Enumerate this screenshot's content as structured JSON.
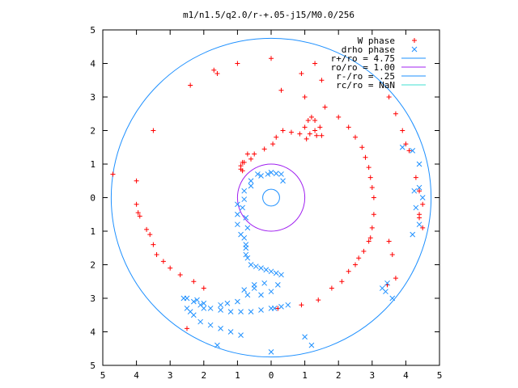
{
  "chart_data": {
    "type": "scatter",
    "title": "m1/n1.5/q2.0/r-+.05-j15/M0.0/256",
    "xlim": [
      -5,
      5
    ],
    "ylim": [
      -5,
      5
    ],
    "x_ticks": [
      -5,
      -4,
      -3,
      -2,
      -1,
      0,
      1,
      2,
      3,
      4,
      5
    ],
    "x_tick_labels": [
      "5",
      "4",
      "3",
      "2",
      "1",
      "0",
      "1",
      "2",
      "3",
      "4",
      "5"
    ],
    "y_ticks": [
      5,
      4,
      3,
      2,
      1,
      0,
      -1,
      -2,
      -3,
      -4,
      -5
    ],
    "y_tick_labels": [
      "5",
      "4",
      "3",
      "2",
      "1",
      "0",
      "1",
      "2",
      "3",
      "4",
      "5"
    ],
    "grid": false,
    "legend_position": "top-right",
    "series": [
      {
        "name": "W phase",
        "marker": "plus",
        "color": "#ff0000",
        "points": [
          [
            0.0,
            4.15
          ],
          [
            -1.0,
            4.0
          ],
          [
            -1.7,
            3.8
          ],
          [
            -1.6,
            3.7
          ],
          [
            -2.4,
            3.35
          ],
          [
            -3.5,
            2.0
          ],
          [
            -4.7,
            0.7
          ],
          [
            -4.0,
            0.5
          ],
          [
            -4.0,
            -0.2
          ],
          [
            -3.95,
            -0.45
          ],
          [
            -3.9,
            -0.55
          ],
          [
            -3.7,
            -0.95
          ],
          [
            -3.6,
            -1.1
          ],
          [
            -3.5,
            -1.4
          ],
          [
            -3.4,
            -1.7
          ],
          [
            -3.2,
            -1.9
          ],
          [
            -3.0,
            -2.1
          ],
          [
            -2.7,
            -2.3
          ],
          [
            -2.3,
            -2.5
          ],
          [
            -2.0,
            -2.7
          ],
          [
            -2.5,
            -3.9
          ],
          [
            0.2,
            -3.3
          ],
          [
            0.9,
            -3.2
          ],
          [
            1.4,
            -3.05
          ],
          [
            1.8,
            -2.7
          ],
          [
            2.1,
            -2.5
          ],
          [
            2.3,
            -2.2
          ],
          [
            2.5,
            -2.0
          ],
          [
            2.6,
            -1.8
          ],
          [
            2.75,
            -1.6
          ],
          [
            2.9,
            -1.3
          ],
          [
            2.95,
            -1.2
          ],
          [
            3.0,
            -0.9
          ],
          [
            3.05,
            -0.5
          ],
          [
            3.05,
            0.0
          ],
          [
            3.0,
            0.3
          ],
          [
            2.95,
            0.6
          ],
          [
            2.9,
            0.9
          ],
          [
            2.8,
            1.2
          ],
          [
            2.7,
            1.5
          ],
          [
            2.5,
            1.8
          ],
          [
            2.3,
            2.1
          ],
          [
            2.0,
            2.4
          ],
          [
            1.6,
            2.7
          ],
          [
            1.0,
            3.0
          ],
          [
            0.3,
            3.2
          ],
          [
            3.5,
            -1.3
          ],
          [
            3.6,
            -1.7
          ],
          [
            3.7,
            -2.4
          ],
          [
            3.45,
            -2.6
          ],
          [
            3.5,
            3.0
          ],
          [
            3.7,
            2.5
          ],
          [
            3.9,
            2.0
          ],
          [
            4.0,
            1.6
          ],
          [
            4.1,
            1.4
          ],
          [
            4.3,
            0.6
          ],
          [
            4.4,
            0.2
          ],
          [
            4.5,
            -0.2
          ],
          [
            4.4,
            -0.5
          ],
          [
            4.4,
            -0.6
          ],
          [
            4.5,
            -0.9
          ],
          [
            1.3,
            4.0
          ],
          [
            0.9,
            3.7
          ],
          [
            1.5,
            3.5
          ],
          [
            -0.85,
            0.8
          ],
          [
            -0.9,
            0.95
          ],
          [
            -0.8,
            1.05
          ],
          [
            -0.6,
            1.15
          ],
          [
            -0.5,
            1.3
          ],
          [
            -0.2,
            1.45
          ],
          [
            0.05,
            1.6
          ],
          [
            0.15,
            1.8
          ],
          [
            0.35,
            2.0
          ],
          [
            0.6,
            1.95
          ],
          [
            0.85,
            1.9
          ],
          [
            1.05,
            1.75
          ],
          [
            1.15,
            1.9
          ],
          [
            1.0,
            2.1
          ],
          [
            1.1,
            2.3
          ],
          [
            1.2,
            2.4
          ],
          [
            1.3,
            2.3
          ],
          [
            1.45,
            2.1
          ],
          [
            1.5,
            1.85
          ],
          [
            1.35,
            1.85
          ],
          [
            1.3,
            2.0
          ],
          [
            -0.7,
            1.3
          ],
          [
            -0.85,
            1.05
          ],
          [
            -0.9,
            0.85
          ]
        ]
      },
      {
        "name": "drho phase",
        "marker": "cross",
        "color": "#1e90ff",
        "points": [
          [
            -0.1,
            0.7
          ],
          [
            -0.4,
            0.7
          ],
          [
            -0.6,
            0.5
          ],
          [
            -0.8,
            0.2
          ],
          [
            -1.0,
            -0.2
          ],
          [
            -1.0,
            -0.5
          ],
          [
            -1.0,
            -0.8
          ],
          [
            -0.9,
            -1.1
          ],
          [
            -0.75,
            -1.4
          ],
          [
            -0.75,
            -1.7
          ],
          [
            -0.6,
            -2.0
          ],
          [
            -0.3,
            -2.1
          ],
          [
            0.0,
            -2.2
          ],
          [
            0.3,
            -2.3
          ],
          [
            0.2,
            -2.6
          ],
          [
            0.0,
            -2.8
          ],
          [
            -0.3,
            -2.9
          ],
          [
            -0.5,
            -2.7
          ],
          [
            -0.7,
            -2.9
          ],
          [
            -1.0,
            -3.1
          ],
          [
            -1.5,
            -3.2
          ],
          [
            -2.0,
            -3.3
          ],
          [
            -2.5,
            -3.0
          ],
          [
            -2.3,
            -3.1
          ],
          [
            -2.1,
            -3.2
          ],
          [
            -1.8,
            -3.3
          ],
          [
            -1.5,
            -3.35
          ],
          [
            -1.2,
            -3.4
          ],
          [
            -0.9,
            -3.4
          ],
          [
            -0.6,
            -3.4
          ],
          [
            -0.3,
            -3.35
          ],
          [
            0.0,
            -3.3
          ],
          [
            0.3,
            -3.25
          ],
          [
            0.5,
            -3.2
          ],
          [
            -2.6,
            -3.0
          ],
          [
            -2.5,
            -3.3
          ],
          [
            -2.3,
            -3.5
          ],
          [
            -2.1,
            -3.7
          ],
          [
            -1.8,
            -3.8
          ],
          [
            -1.5,
            -3.9
          ],
          [
            -1.2,
            -4.0
          ],
          [
            -0.9,
            -4.1
          ],
          [
            -1.6,
            -4.4
          ],
          [
            0.0,
            -4.6
          ],
          [
            1.0,
            -4.15
          ],
          [
            1.2,
            -4.4
          ],
          [
            3.3,
            -2.7
          ],
          [
            3.4,
            -2.8
          ],
          [
            3.45,
            -2.55
          ],
          [
            3.6,
            -3.0
          ],
          [
            4.2,
            -1.1
          ],
          [
            4.4,
            -0.8
          ],
          [
            4.3,
            -0.3
          ],
          [
            4.25,
            0.2
          ],
          [
            4.4,
            0.3
          ],
          [
            3.9,
            1.5
          ],
          [
            4.5,
            0.0
          ],
          [
            4.4,
            1.0
          ],
          [
            4.2,
            1.4
          ],
          [
            -0.8,
            -0.05
          ],
          [
            -0.85,
            -0.3
          ],
          [
            -0.75,
            -0.6
          ],
          [
            -0.7,
            -0.9
          ],
          [
            -0.8,
            -1.2
          ],
          [
            -0.75,
            -1.5
          ],
          [
            -0.7,
            -1.8
          ],
          [
            -0.45,
            -2.05
          ],
          [
            -0.15,
            -2.15
          ],
          [
            0.15,
            -2.25
          ],
          [
            -0.6,
            0.35
          ],
          [
            -0.3,
            0.65
          ],
          [
            0.0,
            0.75
          ],
          [
            0.15,
            0.72
          ],
          [
            0.3,
            0.7
          ],
          [
            0.35,
            0.5
          ],
          [
            -0.2,
            -2.55
          ],
          [
            -0.5,
            -2.6
          ],
          [
            -0.8,
            -2.75
          ],
          [
            -1.3,
            -3.15
          ],
          [
            -2.2,
            -3.05
          ],
          [
            -2.0,
            -3.15
          ],
          [
            0.1,
            -3.3
          ],
          [
            -2.4,
            -3.4
          ]
        ]
      }
    ],
    "lines": [
      {
        "name": "r+/ro = 4.75",
        "label": "r+/ro = 4.75",
        "color": "#1e90ff",
        "radius": 4.75
      },
      {
        "name": "ro/ro = 1.00",
        "label": "ro/ro = 1.00",
        "color": "#a020f0",
        "radius": 1.0
      },
      {
        "name": "r-/ro = .25",
        "label": "r-/ro = .25",
        "color": "#1e90ff",
        "radius": 0.25
      },
      {
        "name": "rc/ro = NaN",
        "label": "rc/ro = NaN",
        "color": "#40e0d0",
        "radius": null
      }
    ],
    "legend": [
      {
        "label": "W phase",
        "marker": "plus",
        "color": "#ff0000"
      },
      {
        "label": "drho phase",
        "marker": "cross",
        "color": "#1e90ff"
      },
      {
        "label": "r+/ro = 4.75",
        "marker": "line",
        "color": "#1e90ff"
      },
      {
        "label": "ro/ro = 1.00",
        "marker": "line",
        "color": "#a020f0"
      },
      {
        "label": "r-/ro = .25",
        "marker": "line",
        "color": "#1e90ff"
      },
      {
        "label": "rc/ro = NaN",
        "marker": "line",
        "color": "#40e0d0"
      }
    ]
  }
}
